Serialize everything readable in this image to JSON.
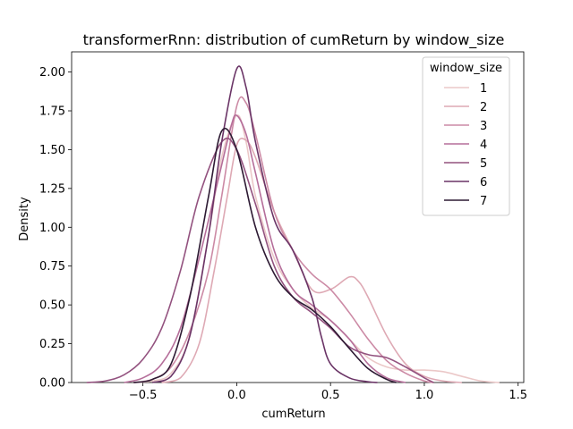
{
  "chart_data": {
    "type": "line",
    "title": "transformerRnn: distribution of cumReturn by window_size",
    "xlabel": "cumReturn",
    "ylabel": "Density",
    "xlim": [
      -0.88,
      1.53
    ],
    "ylim": [
      0,
      2.13
    ],
    "xticks": [
      -0.5,
      0.0,
      0.5,
      1.0,
      1.5
    ],
    "xtick_labels": [
      "−0.5",
      "0.0",
      "0.5",
      "1.0",
      "1.5"
    ],
    "yticks": [
      0.0,
      0.25,
      0.5,
      0.75,
      1.0,
      1.25,
      1.5,
      1.75,
      2.0
    ],
    "ytick_labels": [
      "0.00",
      "0.25",
      "0.50",
      "0.75",
      "1.00",
      "1.25",
      "1.50",
      "1.75",
      "2.00"
    ],
    "grid": false,
    "legend": {
      "title": "window_size",
      "placement": "top-right"
    },
    "series": [
      {
        "name": "1",
        "color": "#ebc8c8",
        "x": [
          -0.55,
          -0.45,
          -0.35,
          -0.25,
          -0.15,
          -0.08,
          0.0,
          0.05,
          0.1,
          0.2,
          0.3,
          0.4,
          0.5,
          0.6,
          0.7,
          0.8,
          0.9,
          1.0,
          1.1,
          1.2,
          1.3,
          1.4
        ],
        "y": [
          0.0,
          0.01,
          0.06,
          0.3,
          0.95,
          1.45,
          1.72,
          1.55,
          1.2,
          0.8,
          0.6,
          0.48,
          0.4,
          0.28,
          0.16,
          0.1,
          0.08,
          0.08,
          0.07,
          0.04,
          0.01,
          0.0
        ]
      },
      {
        "name": "2",
        "color": "#dea9b4",
        "x": [
          -0.4,
          -0.3,
          -0.2,
          -0.12,
          -0.05,
          0.0,
          0.05,
          0.1,
          0.2,
          0.3,
          0.4,
          0.5,
          0.6,
          0.65,
          0.7,
          0.8,
          0.9,
          1.0,
          1.1,
          1.2
        ],
        "y": [
          0.0,
          0.03,
          0.25,
          0.72,
          1.2,
          1.53,
          1.56,
          1.45,
          1.1,
          0.85,
          0.6,
          0.6,
          0.68,
          0.65,
          0.55,
          0.3,
          0.12,
          0.04,
          0.01,
          0.0
        ]
      },
      {
        "name": "3",
        "color": "#cc8aa5",
        "x": [
          -0.55,
          -0.45,
          -0.35,
          -0.25,
          -0.15,
          -0.08,
          0.0,
          0.05,
          0.1,
          0.2,
          0.3,
          0.4,
          0.5,
          0.6,
          0.7,
          0.8,
          0.9,
          1.0,
          1.05
        ],
        "y": [
          0.0,
          0.02,
          0.1,
          0.33,
          0.72,
          1.2,
          1.78,
          1.8,
          1.6,
          1.1,
          0.85,
          0.7,
          0.6,
          0.45,
          0.28,
          0.14,
          0.06,
          0.01,
          0.0
        ]
      },
      {
        "name": "4",
        "color": "#b56e9a",
        "x": [
          -0.6,
          -0.5,
          -0.4,
          -0.3,
          -0.2,
          -0.1,
          -0.03,
          0.0,
          0.05,
          0.1,
          0.2,
          0.3,
          0.4,
          0.5,
          0.6,
          0.7,
          0.8,
          0.9
        ],
        "y": [
          0.0,
          0.03,
          0.12,
          0.35,
          0.8,
          1.3,
          1.65,
          1.72,
          1.6,
          1.35,
          0.85,
          0.6,
          0.5,
          0.4,
          0.28,
          0.12,
          0.03,
          0.0
        ]
      },
      {
        "name": "5",
        "color": "#93527f",
        "x": [
          -0.8,
          -0.7,
          -0.6,
          -0.5,
          -0.4,
          -0.3,
          -0.2,
          -0.08,
          0.0,
          0.1,
          0.2,
          0.3,
          0.4,
          0.5,
          0.6,
          0.7,
          0.8,
          0.9,
          1.0,
          1.05
        ],
        "y": [
          0.0,
          0.01,
          0.05,
          0.15,
          0.35,
          0.72,
          1.2,
          1.55,
          1.5,
          1.15,
          0.75,
          0.55,
          0.45,
          0.35,
          0.23,
          0.18,
          0.16,
          0.1,
          0.03,
          0.0
        ]
      },
      {
        "name": "6",
        "color": "#6a3466",
        "x": [
          -0.45,
          -0.35,
          -0.25,
          -0.15,
          -0.08,
          0.0,
          0.05,
          0.1,
          0.2,
          0.3,
          0.4,
          0.45,
          0.5,
          0.6,
          0.7,
          0.75
        ],
        "y": [
          0.0,
          0.04,
          0.3,
          0.95,
          1.55,
          2.02,
          1.9,
          1.55,
          1.05,
          0.85,
          0.55,
          0.3,
          0.12,
          0.03,
          0.005,
          0.0
        ]
      },
      {
        "name": "7",
        "color": "#2d1a33",
        "x": [
          -0.55,
          -0.45,
          -0.35,
          -0.25,
          -0.15,
          -0.08,
          0.0,
          0.1,
          0.2,
          0.3,
          0.4,
          0.5,
          0.6,
          0.7,
          0.8,
          0.85
        ],
        "y": [
          0.0,
          0.02,
          0.12,
          0.55,
          1.2,
          1.62,
          1.5,
          1.0,
          0.7,
          0.55,
          0.47,
          0.36,
          0.22,
          0.09,
          0.02,
          0.0
        ]
      }
    ]
  }
}
